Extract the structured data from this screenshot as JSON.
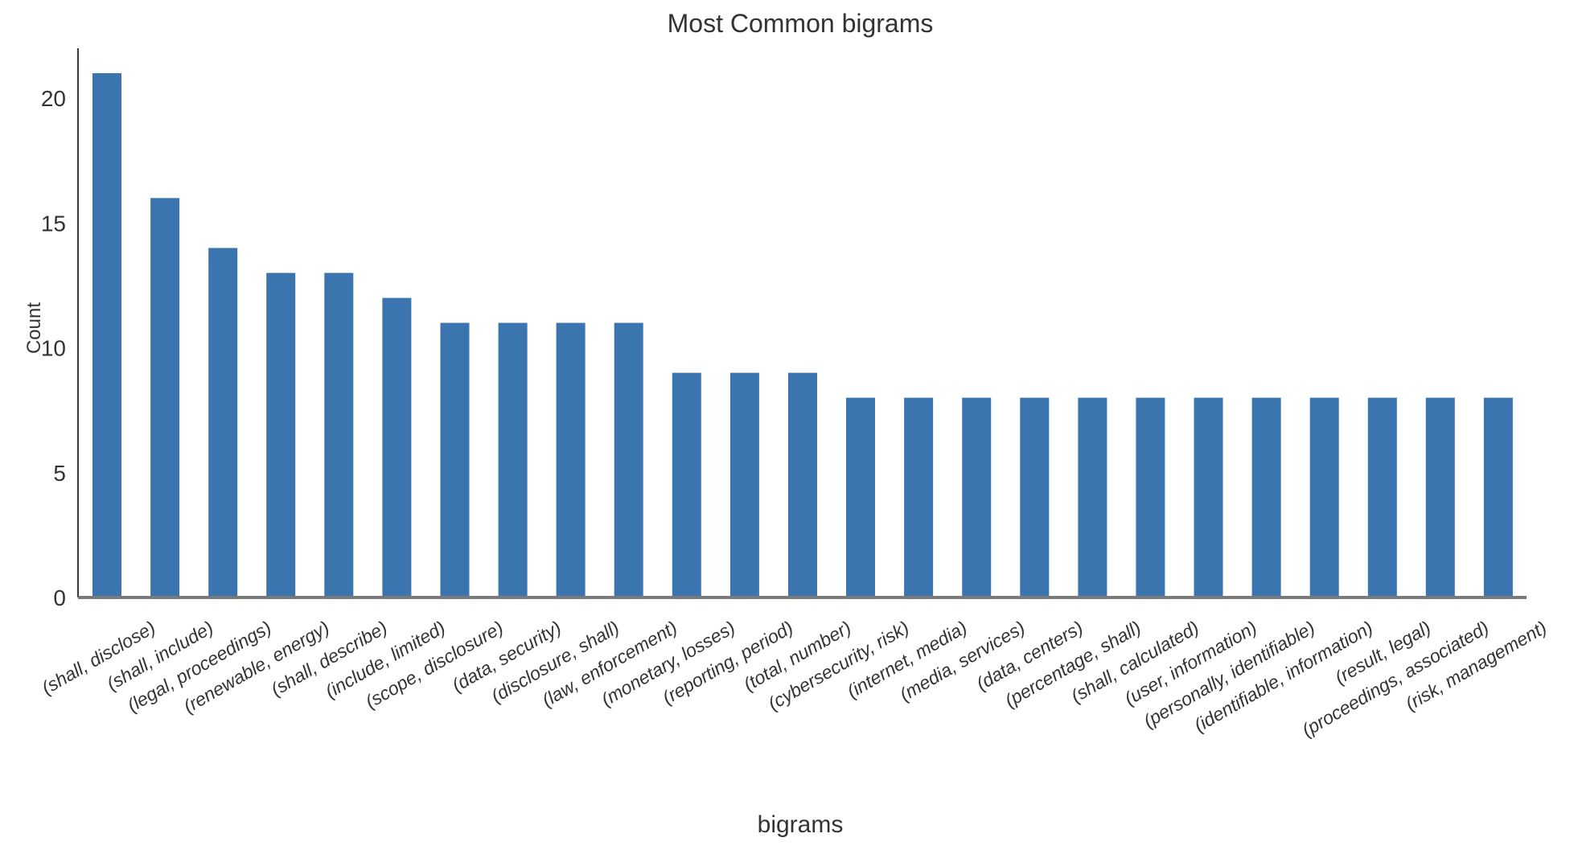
{
  "chart_data": {
    "type": "bar",
    "title": "Most Common bigrams",
    "xlabel": "bigrams",
    "ylabel": "Count",
    "ylim": [
      0,
      22
    ],
    "yticks": [
      0,
      5,
      10,
      15,
      20
    ],
    "grid": false,
    "bar_color": "#3a75b0",
    "categories": [
      "(shall, disclose)",
      "(shall, include)",
      "(legal, proceedings)",
      "(renewable, energy)",
      "(shall, describe)",
      "(include, limited)",
      "(scope, disclosure)",
      "(data, security)",
      "(disclosure, shall)",
      "(law, enforcement)",
      "(monetary, losses)",
      "(reporting, period)",
      "(total, number)",
      "(cybersecurity, risk)",
      "(internet, media)",
      "(media, services)",
      "(data, centers)",
      "(percentage, shall)",
      "(shall, calculated)",
      "(user, information)",
      "(personally, identifiable)",
      "(identifiable, information)",
      "(result, legal)",
      "(proceedings, associated)",
      "(risk, management)"
    ],
    "values": [
      21,
      16,
      14,
      13,
      13,
      12,
      11,
      11,
      11,
      11,
      9,
      9,
      9,
      8,
      8,
      8,
      8,
      8,
      8,
      8,
      8,
      8,
      8,
      8,
      8
    ]
  }
}
